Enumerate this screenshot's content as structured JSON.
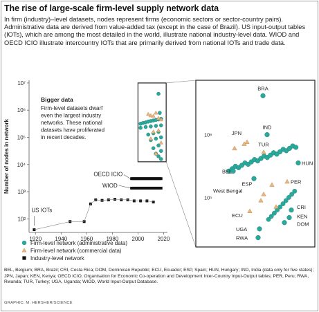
{
  "header": {
    "title": "The rise of large-scale firm-level supply network data",
    "subtitle": "In firm (industry)–level datasets, nodes represent firms (economic sectors or sector-country pairs). Administrative data are derived from value-added tax (except in the case of Brazil). US input-output tables (IOTs), which are among the most detailed in the world, illustrate national industry-level data. WIOD and OECD ICIO illustrate intercountry IOTs that are primarily derived from national IOTs and trade data."
  },
  "footnote": "BEL, Belgium; BRA, Brazil; CRI, Costa Rica; DOM, Dominican Republic; ECU, Ecuador; ESP, Spain; HUN, Hungary; IND, India (data only for five states); JPN, Japan; KEN, Kenya; OECD ICIO, Organisation for Economic Co-operation and Development Inter-Country Input-Output tables; PER, Peru; RWA, Rwanda; TUR, Turkey; UGA, Uganda; WIOD, World Input-Output Database.",
  "credit": "GRAPHIC: M. HERSHER/SCIENCE",
  "colors": {
    "firm_admin": "#2aa89a",
    "firm_admin_stroke": "#1f7f75",
    "firm_commercial": "#e7b57d",
    "firm_commercial_stroke": "#b5834d",
    "industry": "#111111"
  },
  "chart_data": [
    {
      "type": "scatter",
      "title": "",
      "xlabel": "",
      "ylabel": "Number of nodes in network",
      "yscale": "log",
      "xlim": [
        1915,
        2023
      ],
      "ylim_exponent": [
        1.5,
        7.1
      ],
      "x_ticks": [
        1920,
        1940,
        1960,
        1980,
        2000,
        2020
      ],
      "y_ticks": [
        {
          "exp": 2,
          "label": "10²"
        },
        {
          "exp": 3,
          "label": "10³"
        },
        {
          "exp": 4,
          "label": "10⁴"
        },
        {
          "exp": 5,
          "label": "10⁵"
        },
        {
          "exp": 6,
          "label": "10⁶"
        },
        {
          "exp": 7,
          "label": "10⁷"
        }
      ],
      "legend_position": "bottom",
      "legend": [
        {
          "key": "firm_admin",
          "label": "Firm-level network (administrative data)"
        },
        {
          "key": "firm_commercial",
          "label": "Firm-level network (commercial data)"
        },
        {
          "key": "industry",
          "label": "Industry-level network"
        }
      ],
      "annotations": {
        "us_iots": "US IOTs",
        "oecd_icio": "OECD ICIO",
        "wiod": "WIOD",
        "bigger_data_title": "Bigger data",
        "bigger_data_lines": [
          "Firm-level datasets dwarf",
          "even the largest industry",
          "networks. These national",
          "datasets have proliferated",
          "in recent decades."
        ]
      },
      "series": [
        {
          "name": "US IOTs",
          "key": "industry",
          "x": [
            1919,
            1947,
            1958,
            1963,
            1967,
            1972,
            1977,
            1982,
            1987,
            1992,
            1997,
            2002,
            2007,
            2012
          ],
          "y_exp": [
            1.6,
            1.9,
            1.9,
            2.55,
            2.7,
            2.68,
            2.7,
            2.72,
            2.7,
            2.7,
            2.66,
            2.66,
            2.66,
            2.62
          ]
        },
        {
          "name": "OECD ICIO",
          "key": "industry",
          "x": [
            1995,
            1996,
            1997,
            1998,
            1999,
            2000,
            2001,
            2002,
            2003,
            2004,
            2005,
            2006,
            2007,
            2008,
            2009,
            2010,
            2011,
            2012,
            2013,
            2014,
            2015,
            2016,
            2017,
            2018
          ],
          "y_exp": [
            3.48,
            3.48,
            3.48,
            3.48,
            3.48,
            3.48,
            3.48,
            3.48,
            3.48,
            3.48,
            3.48,
            3.48,
            3.48,
            3.48,
            3.48,
            3.48,
            3.48,
            3.48,
            3.48,
            3.48,
            3.48,
            3.48,
            3.48,
            3.48
          ]
        },
        {
          "name": "WIOD",
          "key": "industry",
          "x": [
            1995,
            1996,
            1997,
            1998,
            1999,
            2000,
            2001,
            2002,
            2003,
            2004,
            2005,
            2006,
            2007,
            2008,
            2009,
            2010,
            2011,
            2012,
            2013,
            2014,
            2015,
            2016,
            2017,
            2018
          ],
          "y_exp": [
            3.13,
            3.13,
            3.13,
            3.13,
            3.13,
            3.13,
            3.13,
            3.13,
            3.13,
            3.13,
            3.13,
            3.13,
            3.13,
            3.13,
            3.13,
            3.13,
            3.13,
            3.13,
            3.13,
            3.13,
            3.13,
            3.13,
            3.13,
            3.13
          ]
        },
        {
          "name": "Firm-level (administrative)",
          "key": "firm_admin",
          "x": [
            2016,
            2017,
            2002,
            2004,
            2006,
            2008,
            2010,
            2012,
            2014,
            2016,
            2018,
            2002,
            2006,
            2010,
            2014,
            2018,
            2008,
            2012,
            2016,
            2010,
            2014,
            2018,
            2012,
            2016,
            2014,
            2018,
            2016,
            2018
          ],
          "y_exp": [
            6.6,
            5.9,
            5.5,
            5.53,
            5.55,
            5.58,
            5.6,
            5.62,
            5.64,
            5.66,
            5.68,
            5.35,
            5.38,
            5.4,
            5.42,
            5.44,
            5.1,
            5.15,
            5.2,
            4.9,
            4.95,
            5.0,
            4.6,
            4.7,
            4.4,
            4.5,
            4.3,
            4.2
          ]
        },
        {
          "name": "Firm-level (commercial)",
          "key": "firm_commercial",
          "x": [
            2008,
            2010,
            2012,
            2014,
            2016,
            2018,
            2012,
            2016,
            2010,
            2018,
            2014
          ],
          "y_exp": [
            5.85,
            5.8,
            5.78,
            5.9,
            5.7,
            5.65,
            5.2,
            5.25,
            4.95,
            4.8,
            4.4
          ]
        }
      ]
    },
    {
      "type": "scatter",
      "title": "",
      "note": "Zoomed inset of firm-level networks",
      "y_ticks": [
        {
          "exp": 6,
          "label": "10⁶"
        },
        {
          "exp": 5,
          "label": "10⁵"
        }
      ],
      "labels": [
        "BRA",
        "IND",
        "JPN",
        "TUR",
        "HUN",
        "BEL",
        "ESP",
        "PER",
        "West Bengal",
        "CRI",
        "KEN",
        "ECU",
        "DOM",
        "UGA",
        "RWA"
      ]
    }
  ]
}
